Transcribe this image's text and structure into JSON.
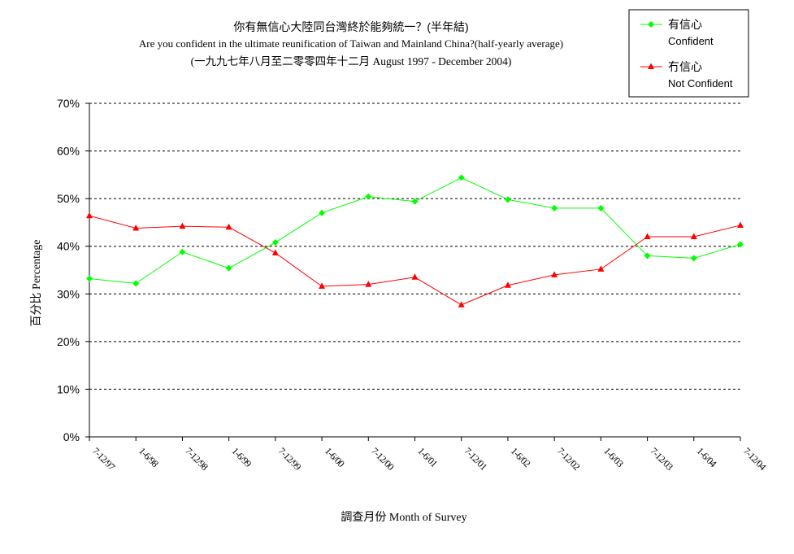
{
  "chart_data": {
    "type": "line",
    "title": "你有無信心大陸同台灣終於能夠統一？(半年結)",
    "subtitle": "Are you confident in the ultimate reunification of Taiwan and Mainland China?(half-yearly average)",
    "subtitle2": "(一九九七年八月至二零零四年十二月 August 1997 - December 2004)",
    "xlabel": "調查月份 Month of Survey",
    "ylabel": "百分比 Percentage",
    "categories": [
      "7-12/97",
      "1-6/98",
      "7-12/98",
      "1-6/99",
      "7-12/99",
      "1-6/00",
      "7-12/00",
      "1-6/01",
      "7-12/01",
      "1-6/02",
      "7-12/02",
      "1-6/03",
      "7-12/03",
      "1-6/04",
      "7-12/04"
    ],
    "ylim": [
      0,
      70
    ],
    "yticks": [
      "0%",
      "10%",
      "20%",
      "30%",
      "40%",
      "50%",
      "60%",
      "70%"
    ],
    "grid": true,
    "legend_position": "top-right",
    "series": [
      {
        "name": "有信心",
        "name_en": "Confident",
        "color": "#00ff00",
        "marker": "diamond",
        "values": [
          33.2,
          32.2,
          38.8,
          35.4,
          40.8,
          47.0,
          50.4,
          49.4,
          54.4,
          49.8,
          48.0,
          48.0,
          38.0,
          37.5,
          40.4
        ]
      },
      {
        "name": "冇信心",
        "name_en": "Not Confident",
        "color": "#ff0000",
        "marker": "triangle",
        "values": [
          46.4,
          43.8,
          44.2,
          44.0,
          38.6,
          31.6,
          32.0,
          33.5,
          27.7,
          31.8,
          34.0,
          35.2,
          42.0,
          42.0,
          44.4
        ]
      }
    ]
  }
}
